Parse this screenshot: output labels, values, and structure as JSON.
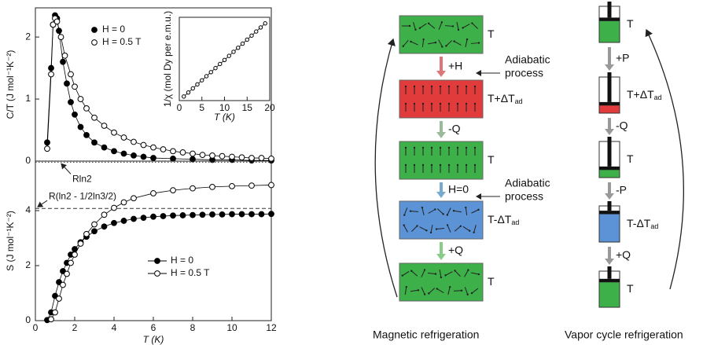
{
  "chart_data": [
    {
      "type": "scatter",
      "ylabel": "C/T (J mol⁻¹K⁻²)",
      "xlim": [
        0,
        12
      ],
      "ylim": [
        0,
        2.47
      ],
      "yticks": [
        0,
        1,
        2
      ],
      "series": [
        {
          "name": "H = 0",
          "marker": "filled",
          "color": "#000000",
          "x": [
            0.6,
            0.8,
            0.9,
            1.0,
            1.1,
            1.2,
            1.4,
            1.6,
            1.8,
            2.0,
            2.3,
            2.6,
            3.0,
            3.5,
            4.0,
            4.5,
            5.0,
            5.5,
            6.0,
            7,
            8,
            9,
            10,
            11,
            12
          ],
          "values": [
            0.3,
            1.5,
            2.2,
            2.35,
            2.3,
            2.1,
            1.6,
            1.25,
            0.95,
            0.75,
            0.55,
            0.42,
            0.3,
            0.22,
            0.16,
            0.12,
            0.09,
            0.07,
            0.05,
            0.04,
            0.03,
            0.02,
            0.02,
            0.01,
            0.01
          ]
        },
        {
          "name": "H = 0.5 T",
          "marker": "open",
          "color": "#000000",
          "x": [
            0.6,
            0.8,
            0.9,
            1.0,
            1.1,
            1.3,
            1.5,
            1.8,
            2.0,
            2.3,
            2.6,
            3.0,
            3.5,
            4.0,
            4.5,
            5.0,
            5.5,
            6.0,
            6.5,
            7,
            7.5,
            8,
            8.5,
            9,
            9.5,
            10,
            10.5,
            11,
            11.5,
            12
          ],
          "values": [
            0.2,
            1.4,
            2.2,
            2.3,
            2.25,
            2.0,
            1.7,
            1.4,
            1.2,
            1.0,
            0.85,
            0.7,
            0.57,
            0.46,
            0.38,
            0.31,
            0.26,
            0.22,
            0.19,
            0.16,
            0.14,
            0.12,
            0.1,
            0.09,
            0.08,
            0.07,
            0.06,
            0.05,
            0.05,
            0.04
          ]
        }
      ]
    },
    {
      "type": "scatter",
      "xlabel": "T (K)",
      "ylabel": "1/χ (mol Dy per e.m.u.)",
      "xlim": [
        0,
        20
      ],
      "ylim": [
        0,
        20.5
      ],
      "xticks": [
        0,
        5,
        10,
        15,
        20
      ],
      "series": [
        {
          "marker": "open",
          "color": "#000000",
          "x": [
            1,
            2,
            3,
            4,
            5,
            6,
            7,
            8,
            9,
            10,
            11,
            12,
            13,
            14,
            15,
            16,
            17,
            18,
            19
          ],
          "values": [
            1,
            2,
            3,
            4,
            5,
            6,
            7,
            8,
            9,
            10,
            11,
            12,
            13,
            14,
            15,
            16,
            17,
            18,
            19
          ]
        }
      ]
    },
    {
      "type": "scatter",
      "xlabel": "T (K)",
      "ylabel": "S (J mol⁻¹K⁻²)",
      "xlim": [
        0,
        12
      ],
      "ylim": [
        0,
        5.8
      ],
      "xticks": [
        0,
        2,
        4,
        6,
        8,
        10,
        12
      ],
      "yticks": [
        0,
        2,
        4
      ],
      "reference_lines": [
        {
          "value": 5.76,
          "label": "Rln2",
          "style": "dotted"
        },
        {
          "value": 4.08,
          "label": "R(ln2 - 1/2ln3/2)",
          "style": "dashed"
        }
      ],
      "series": [
        {
          "name": "H = 0",
          "marker": "filled",
          "color": "#000000",
          "x": [
            0.6,
            0.8,
            1.0,
            1.2,
            1.4,
            1.6,
            1.8,
            2.0,
            2.3,
            2.6,
            3.0,
            3.5,
            4.0,
            4.5,
            5,
            5.5,
            6,
            6.5,
            7,
            7.5,
            8,
            8.5,
            9,
            9.5,
            10,
            10.5,
            11,
            11.5,
            12
          ],
          "values": [
            0.02,
            0.3,
            0.9,
            1.4,
            1.8,
            2.1,
            2.4,
            2.6,
            2.85,
            3.05,
            3.25,
            3.42,
            3.55,
            3.63,
            3.7,
            3.74,
            3.78,
            3.8,
            3.82,
            3.83,
            3.84,
            3.85,
            3.86,
            3.86,
            3.87,
            3.87,
            3.87,
            3.87,
            3.88
          ]
        },
        {
          "name": "H = 0.5 T",
          "marker": "open",
          "color": "#000000",
          "x": [
            0.8,
            1.0,
            1.2,
            1.4,
            1.6,
            1.8,
            2.0,
            2.3,
            2.6,
            3.0,
            3.5,
            4.0,
            4.5,
            5,
            6,
            7,
            8,
            9,
            10,
            11,
            12
          ],
          "values": [
            0.05,
            0.3,
            0.8,
            1.3,
            1.7,
            2.1,
            2.4,
            2.8,
            3.15,
            3.5,
            3.85,
            4.1,
            4.3,
            4.45,
            4.63,
            4.74,
            4.81,
            4.86,
            4.89,
            4.91,
            4.93
          ]
        }
      ]
    }
  ],
  "diagram": {
    "magnetic": {
      "title": "Magnetic refrigeration",
      "states": [
        {
          "label": {
            "main": "T"
          },
          "color": "#3db04a"
        },
        {
          "label": {
            "main": "T+ΔT",
            "sub": "ad"
          },
          "color": "#e23b3b"
        },
        {
          "label": {
            "main": "T"
          },
          "color": "#3db04a"
        },
        {
          "label": {
            "main": "T-ΔT",
            "sub": "ad"
          },
          "color": "#5b93d6"
        },
        {
          "label": {
            "main": "T"
          },
          "color": "#3db04a"
        }
      ],
      "steps": [
        {
          "label": "+H",
          "note": [
            "Adiabatic",
            "process"
          ]
        },
        {
          "label": "-Q"
        },
        {
          "label": "H=0",
          "note": [
            "Adiabatic",
            "process"
          ]
        },
        {
          "label": "+Q"
        }
      ]
    },
    "vapor": {
      "title": "Vapor cycle refrigeration",
      "states": [
        {
          "label": {
            "main": "T"
          },
          "color": "#3db04a"
        },
        {
          "label": {
            "main": "T+ΔT",
            "sub": "ad"
          },
          "color": "#e23b3b"
        },
        {
          "label": {
            "main": "T"
          },
          "color": "#3db04a"
        },
        {
          "label": {
            "main": "T-ΔT",
            "sub": "ad"
          },
          "color": "#5b93d6"
        },
        {
          "label": {
            "main": "T"
          },
          "color": "#3db04a"
        }
      ],
      "steps": [
        {
          "label": "+P"
        },
        {
          "label": "-Q"
        },
        {
          "label": "-P"
        },
        {
          "label": "+Q"
        }
      ]
    }
  }
}
